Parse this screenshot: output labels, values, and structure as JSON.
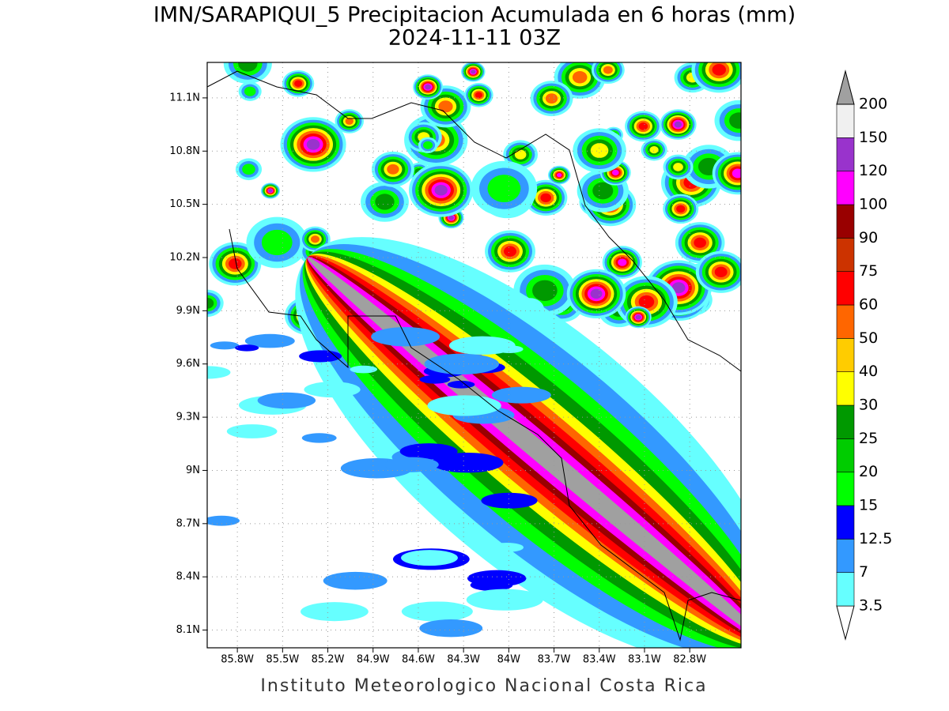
{
  "title": "IMN/SARAPIQUI_5 Precipitacion Acumulada en 6 horas (mm)",
  "subtitle": "2024-11-11 03Z",
  "footer": "Instituto Meteorologico Nacional Costa Rica",
  "map": {
    "lonlim": [
      -86.0,
      -82.46
    ],
    "latlim": [
      8.0,
      11.3
    ],
    "grid": true,
    "lonticks": [
      {
        "value": -85.8,
        "label": "85.8W"
      },
      {
        "value": -85.5,
        "label": "85.5W"
      },
      {
        "value": -85.2,
        "label": "85.2W"
      },
      {
        "value": -84.9,
        "label": "84.9W"
      },
      {
        "value": -84.6,
        "label": "84.6W"
      },
      {
        "value": -84.3,
        "label": "84.3W"
      },
      {
        "value": -84.0,
        "label": "84W"
      },
      {
        "value": -83.7,
        "label": "83.7W"
      },
      {
        "value": -83.4,
        "label": "83.4W"
      },
      {
        "value": -83.1,
        "label": "83.1W"
      },
      {
        "value": -82.8,
        "label": "82.8W"
      }
    ],
    "latticks": [
      {
        "value": 8.1,
        "label": "8.1N"
      },
      {
        "value": 8.4,
        "label": "8.4N"
      },
      {
        "value": 8.7,
        "label": "8.7N"
      },
      {
        "value": 9.0,
        "label": "9N"
      },
      {
        "value": 9.3,
        "label": "9.3N"
      },
      {
        "value": 9.6,
        "label": "9.6N"
      },
      {
        "value": 9.9,
        "label": "9.9N"
      },
      {
        "value": 10.2,
        "label": "10.2N"
      },
      {
        "value": 10.5,
        "label": "10.5N"
      },
      {
        "value": 10.8,
        "label": "10.8N"
      },
      {
        "value": 11.1,
        "label": "11.1N"
      }
    ]
  },
  "colorbar": {
    "levels": [
      3.5,
      7,
      12.5,
      15,
      20,
      25,
      30,
      40,
      50,
      60,
      75,
      90,
      100,
      120,
      150,
      200
    ],
    "colors": [
      "#ffffff",
      "#66ffff",
      "#3399ff",
      "#0000ff",
      "#00ff00",
      "#00cc00",
      "#009900",
      "#ffff00",
      "#ffcc00",
      "#ff6600",
      "#ff0000",
      "#cc3300",
      "#990000",
      "#ff00ff",
      "#9933cc",
      "#f0f0f0",
      "#a0a0a0"
    ]
  }
}
